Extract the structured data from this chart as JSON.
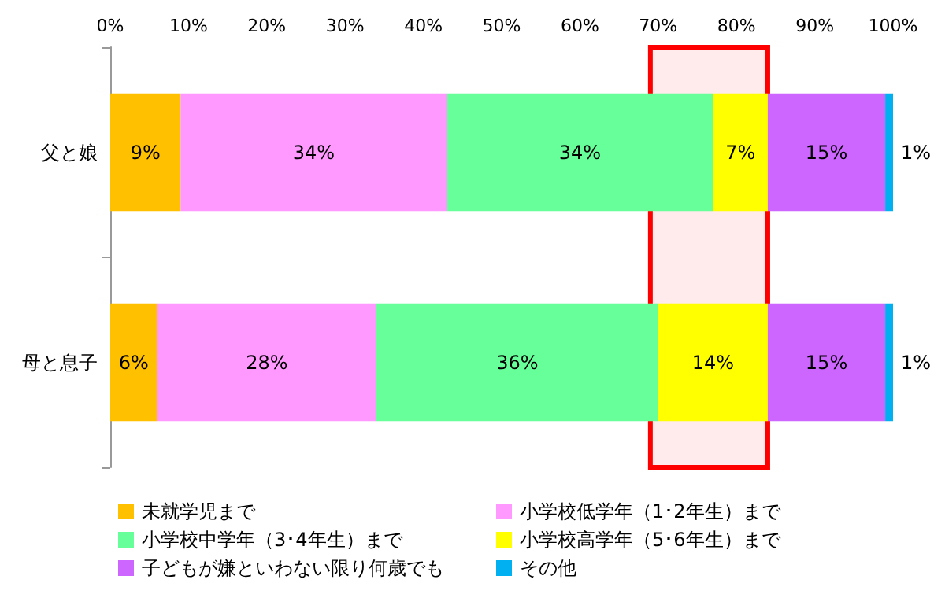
{
  "chart_data": {
    "type": "bar",
    "orientation": "horizontal",
    "stacked": true,
    "categories": [
      "父と娘",
      "母と息子"
    ],
    "series": [
      {
        "name": "未就学児まで",
        "color": "#ffc000",
        "values": [
          9,
          6
        ],
        "value_labels": [
          "9%",
          "6%"
        ]
      },
      {
        "name": "小学校低学年（1･2年生）まで",
        "color": "#ff99ff",
        "values": [
          34,
          28
        ],
        "value_labels": [
          "34%",
          "28%"
        ]
      },
      {
        "name": "小学校中学年（3･4年生）まで",
        "color": "#66ff99",
        "values": [
          34,
          36
        ],
        "value_labels": [
          "34%",
          "36%"
        ]
      },
      {
        "name": "小学校高学年（5･6年生）まで",
        "color": "#ffff00",
        "values": [
          7,
          14
        ],
        "value_labels": [
          "7%",
          "14%"
        ]
      },
      {
        "name": "子どもが嫌といわない限り何歳でも",
        "color": "#cc66ff",
        "values": [
          15,
          15
        ],
        "value_labels": [
          "15%",
          "15%"
        ]
      },
      {
        "name": "その他",
        "color": "#00b0f0",
        "values": [
          1,
          1
        ],
        "value_labels": [
          "1%",
          "1%"
        ]
      }
    ],
    "xlim": [
      0,
      100
    ],
    "xticks": [
      {
        "value": 0,
        "label": "0%"
      },
      {
        "value": 10,
        "label": "10%"
      },
      {
        "value": 20,
        "label": "20%"
      },
      {
        "value": 30,
        "label": "30%"
      },
      {
        "value": 40,
        "label": "40%"
      },
      {
        "value": 50,
        "label": "50%"
      },
      {
        "value": 60,
        "label": "60%"
      },
      {
        "value": 70,
        "label": "70%"
      },
      {
        "value": 80,
        "label": "80%"
      },
      {
        "value": 90,
        "label": "90%"
      },
      {
        "value": 100,
        "label": "100%"
      }
    ],
    "bands": [
      {
        "axis": "x",
        "from": 69,
        "to": 84,
        "color": "#ff0000"
      }
    ],
    "grid": false,
    "legend": "bottom"
  }
}
